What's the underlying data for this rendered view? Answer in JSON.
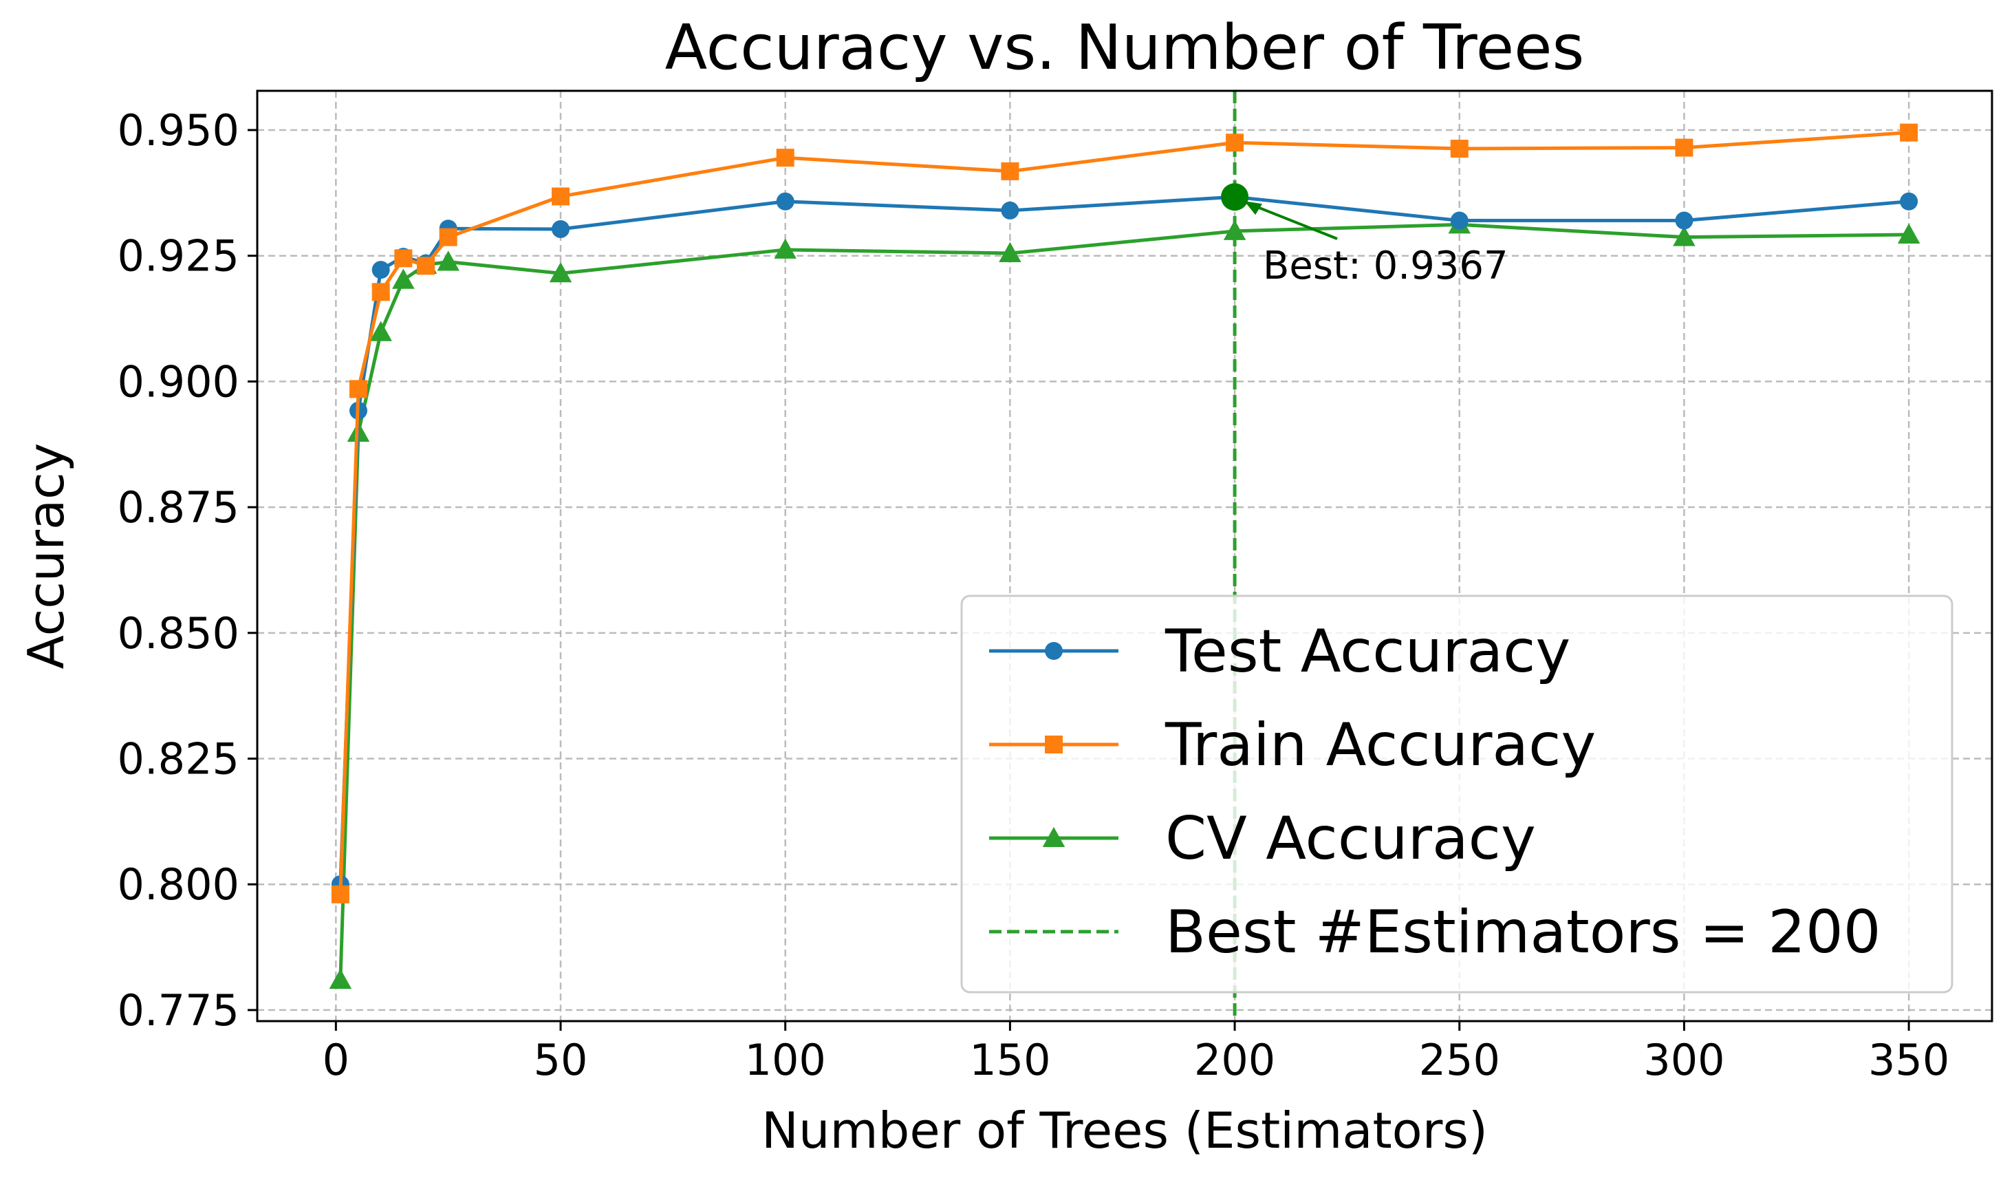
{
  "chart_data": {
    "type": "line",
    "title": "Accuracy vs. Number of Trees",
    "xlabel": "Number of Trees (Estimators)",
    "ylabel": "Accuracy",
    "xlim": [
      -17.5,
      368.5
    ],
    "ylim": [
      0.7728,
      0.9578
    ],
    "x_ticks": [
      0,
      50,
      100,
      150,
      200,
      250,
      300,
      350
    ],
    "x_tick_labels": [
      "0",
      "50",
      "100",
      "150",
      "200",
      "250",
      "300",
      "350"
    ],
    "y_ticks": [
      0.775,
      0.8,
      0.825,
      0.85,
      0.875,
      0.9,
      0.925,
      0.95
    ],
    "y_tick_labels": [
      "0.775",
      "0.800",
      "0.825",
      "0.850",
      "0.875",
      "0.900",
      "0.925",
      "0.950"
    ],
    "grid": true,
    "legend_position": "lower-right",
    "x": [
      1,
      5,
      10,
      15,
      20,
      25,
      50,
      100,
      150,
      200,
      250,
      300,
      350
    ],
    "series": [
      {
        "name": "Test Accuracy",
        "color": "#1f77b4",
        "marker": "circle",
        "values": [
          0.8,
          0.8942,
          0.9222,
          0.9248,
          0.9235,
          0.9304,
          0.9303,
          0.9358,
          0.934,
          0.9367,
          0.932,
          0.932,
          0.9358
        ]
      },
      {
        "name": "Train Accuracy",
        "color": "#ff7f0e",
        "marker": "square",
        "values": [
          0.798,
          0.8985,
          0.9178,
          0.9245,
          0.923,
          0.9287,
          0.9368,
          0.9445,
          0.9418,
          0.9475,
          0.9463,
          0.9465,
          0.9495
        ]
      },
      {
        "name": "CV Accuracy",
        "color": "#2ca02c",
        "marker": "triangle",
        "values": [
          0.781,
          0.8898,
          0.9098,
          0.9202,
          0.9232,
          0.9238,
          0.9215,
          0.9262,
          0.9255,
          0.9299,
          0.9312,
          0.9287,
          0.9292
        ]
      }
    ],
    "vertical_line": {
      "x": 200,
      "label": "Best #Estimators = 200",
      "color": "#2ca02c",
      "style": "dashed"
    },
    "best_point": {
      "x": 200,
      "y": 0.9367,
      "color": "#008000",
      "annotation": "Best: 0.9367"
    }
  }
}
